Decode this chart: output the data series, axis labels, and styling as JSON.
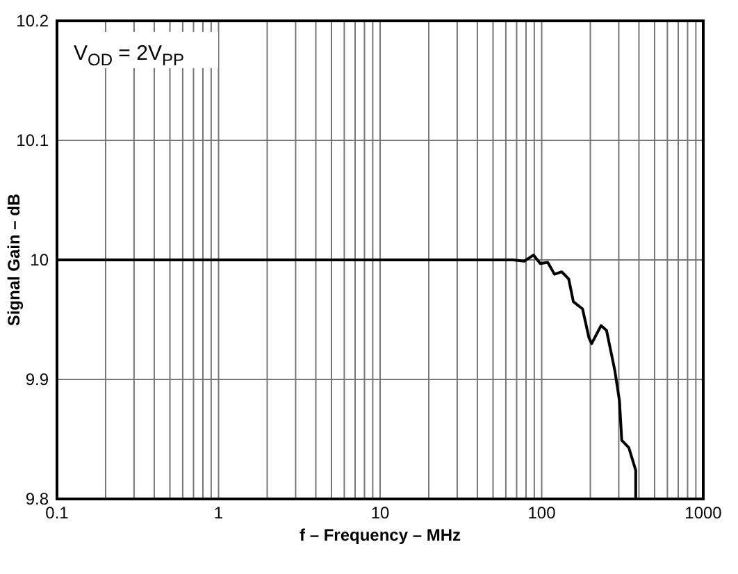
{
  "chart_data": {
    "type": "line",
    "xlabel": "f – Frequency – MHz",
    "ylabel": "Signal Gain – dB",
    "log": "x",
    "grid": true,
    "line_style": "solid",
    "marker": "none",
    "xlim": [
      0.1,
      1000
    ],
    "ylim": [
      9.8,
      10.2
    ],
    "xticks": [
      0.1,
      {
        "value": 0.2,
        "label": null
      },
      {
        "value": 0.3,
        "label": null
      },
      {
        "value": 0.4,
        "label": null
      },
      {
        "value": 0.5,
        "label": null
      },
      {
        "value": 0.6,
        "label": null
      },
      {
        "value": 0.7,
        "label": null
      },
      {
        "value": 0.8,
        "label": null
      },
      {
        "value": 0.9,
        "label": null
      },
      1,
      {
        "value": 2,
        "label": null
      },
      {
        "value": 3,
        "label": null
      },
      {
        "value": 4,
        "label": null
      },
      {
        "value": 5,
        "label": null
      },
      {
        "value": 6,
        "label": null
      },
      {
        "value": 7,
        "label": null
      },
      {
        "value": 8,
        "label": null
      },
      {
        "value": 9,
        "label": null
      },
      10,
      {
        "value": 20,
        "label": null
      },
      {
        "value": 30,
        "label": null
      },
      {
        "value": 40,
        "label": null
      },
      {
        "value": 50,
        "label": null
      },
      {
        "value": 60,
        "label": null
      },
      {
        "value": 70,
        "label": null
      },
      {
        "value": 80,
        "label": null
      },
      {
        "value": 90,
        "label": null
      },
      100,
      {
        "value": 200,
        "label": null
      },
      {
        "value": 300,
        "label": null
      },
      {
        "value": 400,
        "label": null
      },
      {
        "value": 500,
        "label": null
      },
      {
        "value": 600,
        "label": null
      },
      {
        "value": 700,
        "label": null
      },
      {
        "value": 800,
        "label": null
      },
      {
        "value": 900,
        "label": null
      },
      1000
    ],
    "yticks": [
      9.8,
      9.9,
      10,
      10.1,
      10.2
    ],
    "annotations": [
      "V$_{OD}$ = 2V$_{PP}$"
    ],
    "series": [
      {
        "color": "#000000",
        "x": [
          0.1,
          1,
          10,
          66.5,
          78,
          89,
          98,
          109,
          120,
          133,
          147,
          157,
          179,
          196,
          204,
          213,
          233,
          252,
          284,
          303,
          313,
          346,
          382,
          382
        ],
        "values": [
          10.0,
          10.0,
          10.0,
          10.0,
          9.999,
          10.004,
          9.997,
          9.998,
          9.988,
          9.99,
          9.984,
          9.965,
          9.959,
          9.935,
          9.93,
          9.935,
          9.945,
          9.941,
          9.907,
          9.882,
          9.849,
          9.843,
          9.824,
          9.8
        ]
      }
    ]
  }
}
